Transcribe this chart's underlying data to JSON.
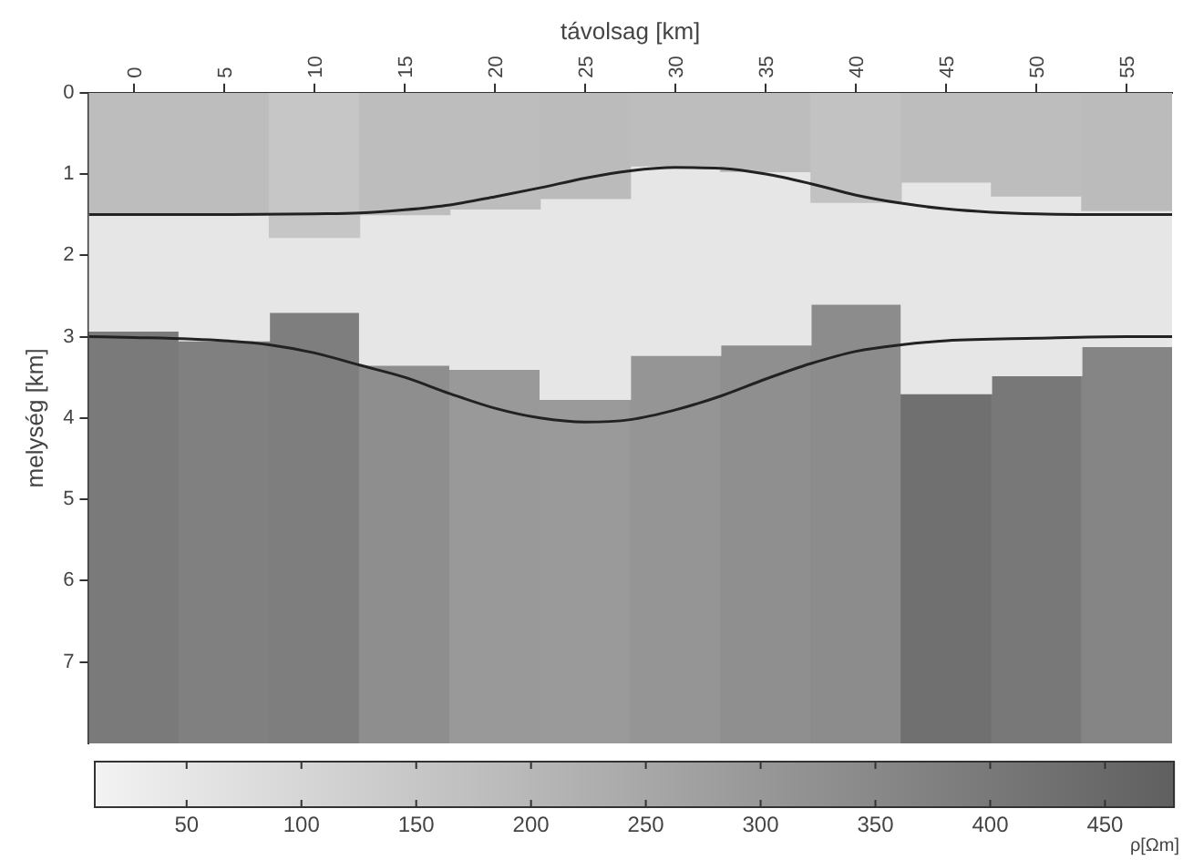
{
  "chart_data": {
    "type": "bar",
    "stacked": true,
    "xlabel": "távolsag [km]",
    "ylabel": "melység [km]",
    "clabel": "ρ[Ωm]",
    "x": [
      0,
      5,
      10,
      15,
      20,
      25,
      30,
      35,
      40,
      45,
      50,
      55
    ],
    "xlim": [
      -2.5,
      57.5
    ],
    "xticks": [
      0,
      5,
      10,
      15,
      20,
      25,
      30,
      35,
      40,
      45,
      50,
      55
    ],
    "ylim": [
      8,
      0
    ],
    "yticks": [
      0,
      1,
      2,
      3,
      4,
      5,
      6,
      7
    ],
    "clim": [
      10,
      480
    ],
    "cticks": [
      50,
      100,
      150,
      200,
      250,
      300,
      350,
      400,
      450
    ],
    "legend": false,
    "series": [
      {
        "colors": [
          "#bdbdbd",
          "#bdbdbd",
          "#c6c6c6",
          "#bdbdbd",
          "#bdbdbd",
          "#bbbbbb",
          "#bdbdbd",
          "#bdbdbd",
          "#c2c2c2",
          "#bdbdbd",
          "#bdbdbd",
          "#bbbbbb"
        ],
        "values": [
          1.5,
          1.5,
          1.78,
          1.5,
          1.43,
          1.3,
          0.9,
          0.97,
          1.35,
          1.1,
          1.27,
          1.45
        ]
      },
      {
        "color": "#e6e6e6",
        "values": [
          1.43,
          1.55,
          0.92,
          1.85,
          1.97,
          2.47,
          2.33,
          2.13,
          1.25,
          2.6,
          2.21,
          1.67
        ]
      },
      {
        "colors": [
          "#7a7a7a",
          "#808080",
          "#7e7e7e",
          "#8e8e8e",
          "#999999",
          "#9a9a9a",
          "#959595",
          "#8f8f8f",
          "#8c8c8c",
          "#707070",
          "#787878",
          "#858585"
        ],
        "values": [
          5.07,
          4.95,
          5.3,
          4.65,
          4.6,
          4.23,
          4.77,
          4.9,
          5.4,
          4.3,
          4.52,
          4.88
        ]
      },
      {
        "type": "line",
        "color": "#222222",
        "marker": "none",
        "x": [
          -2.5,
          0,
          5,
          10,
          12.5,
          15,
          17.5,
          20,
          22.5,
          25,
          27.5,
          30,
          32.5,
          35,
          37.5,
          40,
          42.5,
          45,
          47.5,
          50,
          55,
          57.5
        ],
        "values": [
          1.5,
          1.5,
          1.5,
          1.49,
          1.48,
          1.44,
          1.38,
          1.28,
          1.17,
          1.05,
          0.96,
          0.92,
          0.93,
          1.0,
          1.12,
          1.26,
          1.36,
          1.43,
          1.47,
          1.49,
          1.5,
          1.5
        ]
      },
      {
        "type": "line",
        "color": "#222222",
        "marker": "none",
        "x": [
          -2.5,
          0,
          5,
          7.5,
          10,
          12.5,
          15,
          17.5,
          20,
          22.5,
          25,
          27.5,
          30,
          32.5,
          35,
          37.5,
          40,
          42.5,
          45,
          50,
          55,
          57.5
        ],
        "values": [
          3.0,
          3.01,
          3.05,
          3.1,
          3.2,
          3.35,
          3.5,
          3.7,
          3.88,
          4.0,
          4.05,
          4.02,
          3.9,
          3.73,
          3.52,
          3.33,
          3.18,
          3.1,
          3.05,
          3.02,
          3.0,
          3.0
        ]
      }
    ]
  }
}
